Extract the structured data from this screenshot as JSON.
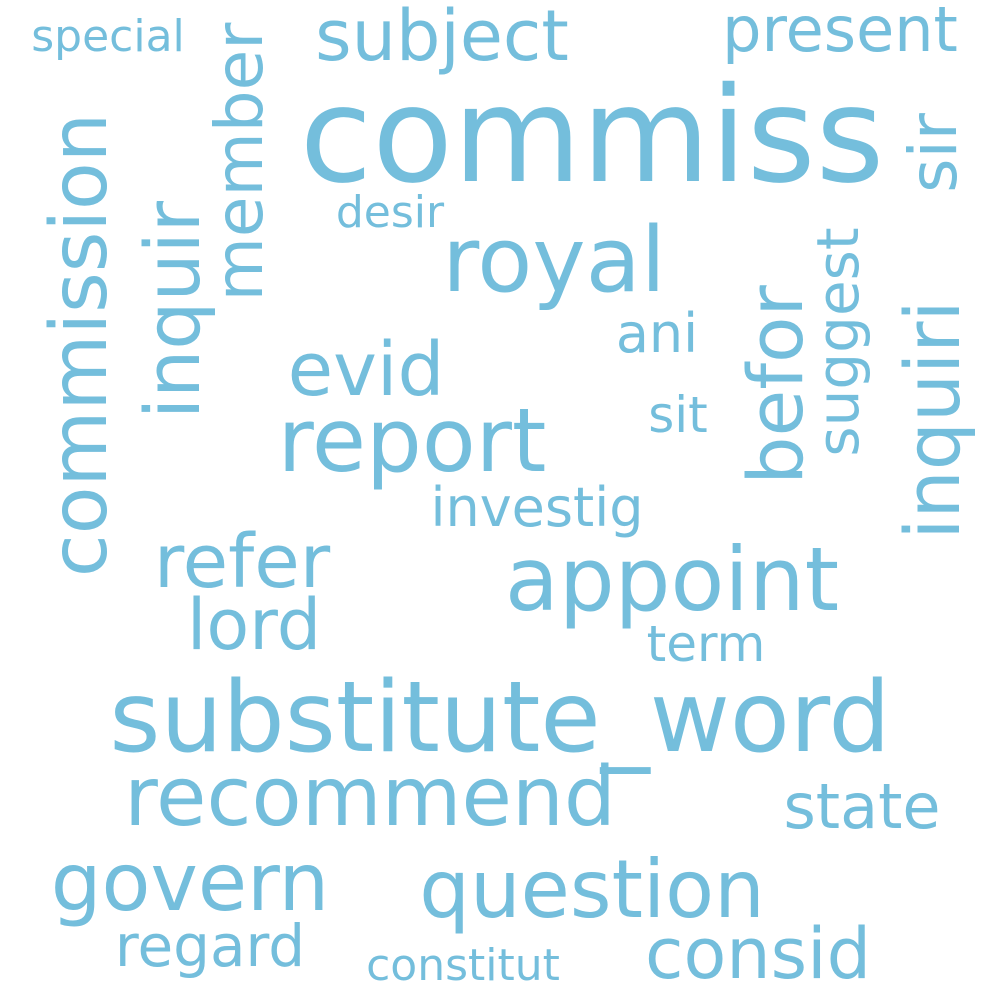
{
  "word_color": "#74bedc",
  "background": "#ffffff",
  "words": {
    "commiss": "commiss",
    "substitute_word": "substitute_word",
    "royal": "royal",
    "report": "report",
    "appoint": "appoint",
    "recommend": "recommend",
    "question": "question",
    "commission": "commission",
    "govern": "govern",
    "inquir": "inquir",
    "inquiri": "inquiri",
    "evid": "evid",
    "refer": "refer",
    "subject": "subject",
    "member": "member",
    "befor": "befor",
    "consid": "consid",
    "lord": "lord",
    "present": "present",
    "state": "state",
    "regard": "regard",
    "suggest": "suggest",
    "investig": "investig",
    "ani": "ani",
    "term": "term",
    "sir": "sir",
    "sit": "sit",
    "desir": "desir",
    "special": "special",
    "constitut": "constitut"
  }
}
